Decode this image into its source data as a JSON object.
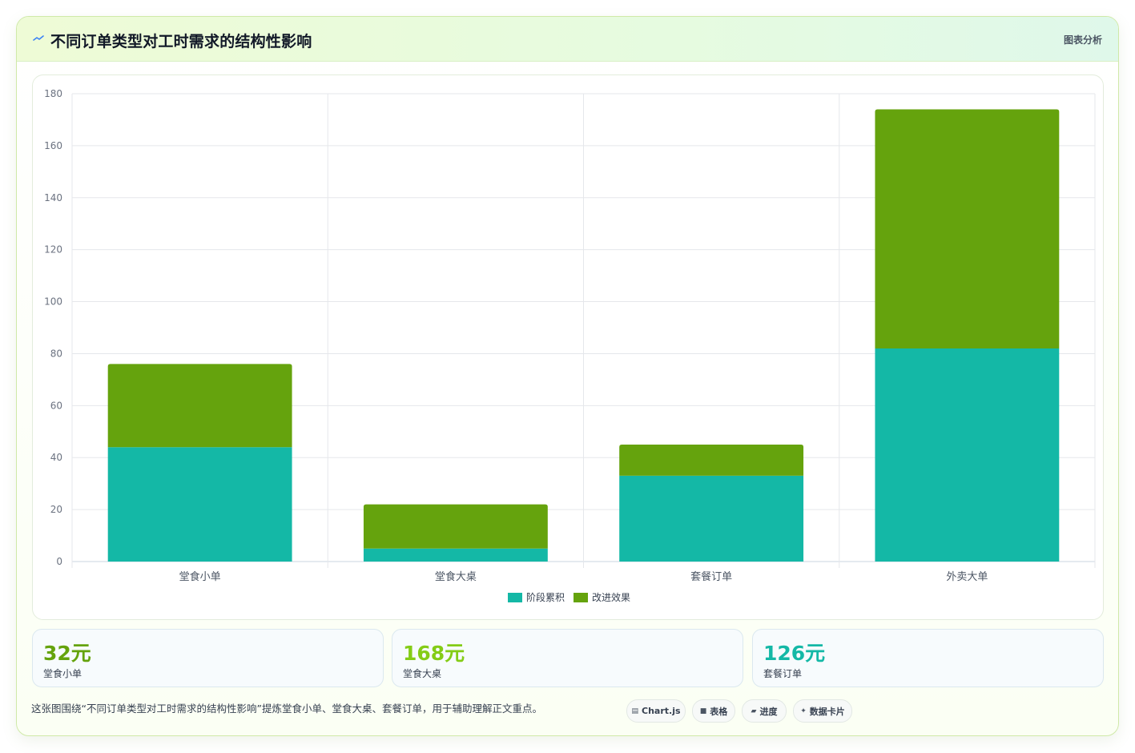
{
  "header": {
    "title": "不同订单类型对工时需求的结构性影响",
    "tag": "图表分析",
    "title_icon": "sparkline-icon"
  },
  "chart_data": {
    "type": "bar",
    "stacked": true,
    "categories": [
      "堂食小单",
      "堂食大桌",
      "套餐订单",
      "外卖大单"
    ],
    "series": [
      {
        "name": "阶段累积",
        "values": [
          44,
          5,
          33,
          82
        ],
        "color": "#14b8a6"
      },
      {
        "name": "改进效果",
        "values": [
          32,
          17,
          12,
          92
        ],
        "color": "#65a30d"
      }
    ],
    "ylim": [
      0,
      180
    ],
    "yticks": [
      0,
      20,
      40,
      60,
      80,
      100,
      120,
      140,
      160,
      180
    ],
    "grid": true,
    "legend": "bottom"
  },
  "stats": [
    {
      "value": "32元",
      "label": "堂食小单",
      "color": "#65a30d"
    },
    {
      "value": "168元",
      "label": "堂食大桌",
      "color": "#84cc16"
    },
    {
      "value": "126元",
      "label": "套餐订单",
      "color": "#14b8a6"
    }
  ],
  "caption": "这张图围绕“不同订单类型对工时需求的结构性影响”提炼堂食小单、堂食大桌、套餐订单，用于辅助理解正文重点。",
  "pills": [
    {
      "icon": "▤",
      "label": "Chart.js",
      "icon_name": "chart-icon"
    },
    {
      "icon": "■",
      "label": "表格",
      "icon_name": "table-icon"
    },
    {
      "icon": "▰",
      "label": "进度",
      "icon_name": "progress-icon"
    },
    {
      "icon": "✦",
      "label": "数据卡片",
      "icon_name": "card-icon"
    }
  ]
}
